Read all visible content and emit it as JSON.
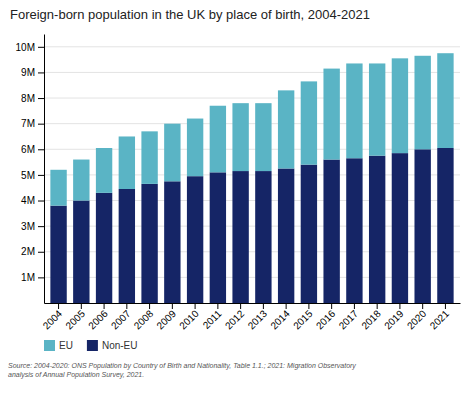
{
  "chart_data": {
    "type": "bar",
    "stacked": true,
    "title": "Foreign-born population in the UK by place of birth, 2004-2021",
    "categories": [
      "2004",
      "2005",
      "2006",
      "2007",
      "2008",
      "2009",
      "2010",
      "2011",
      "2012",
      "2013",
      "2014",
      "2015",
      "2016",
      "2017",
      "2018",
      "2019",
      "2020",
      "2021"
    ],
    "series": [
      {
        "name": "Non-EU",
        "color": "#152566",
        "values": [
          3800000,
          4000000,
          4300000,
          4450000,
          4650000,
          4750000,
          4950000,
          5100000,
          5150000,
          5150000,
          5250000,
          5400000,
          5600000,
          5650000,
          5750000,
          5850000,
          6000000,
          6050000
        ]
      },
      {
        "name": "EU",
        "color": "#5ab4c5",
        "values": [
          1400000,
          1600000,
          1750000,
          2050000,
          2050000,
          2250000,
          2250000,
          2600000,
          2650000,
          2650000,
          3050000,
          3250000,
          3550000,
          3700000,
          3600000,
          3700000,
          3650000,
          3700000
        ]
      }
    ],
    "ylim": [
      0,
      10500000
    ],
    "yticks": [
      {
        "value": 1000000,
        "label": "1M"
      },
      {
        "value": 2000000,
        "label": "2M"
      },
      {
        "value": 3000000,
        "label": "3M"
      },
      {
        "value": 4000000,
        "label": "4M"
      },
      {
        "value": 5000000,
        "label": "5M"
      },
      {
        "value": 6000000,
        "label": "6M"
      },
      {
        "value": 7000000,
        "label": "7M"
      },
      {
        "value": 8000000,
        "label": "8M"
      },
      {
        "value": 9000000,
        "label": "9M"
      },
      {
        "value": 10000000,
        "label": "10M"
      }
    ],
    "grid": true,
    "legend": "bottom",
    "annotations": [
      "Source: 2004-2020: ONS Population by Country of Birth and Nationality, Table 1.1.; 2021: Migration Observatory\nanalysis of Annual Population Survey, 2021."
    ]
  }
}
